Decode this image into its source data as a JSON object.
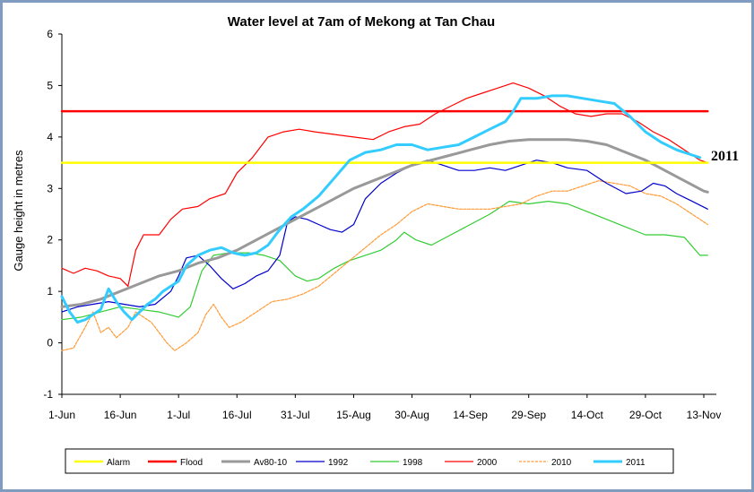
{
  "chart_data": {
    "type": "line",
    "title": "Water level at 7am of Mekong at Tan Chau",
    "xlabel": "",
    "ylabel": "Gauge height in metres",
    "ylim": [
      -1,
      6
    ],
    "yticks": [
      "-1",
      "0",
      "1",
      "2",
      "3",
      "4",
      "5",
      "6"
    ],
    "xlim": [
      0,
      165
    ],
    "xticks": [
      {
        "x": 0,
        "label": "1-Jun"
      },
      {
        "x": 15,
        "label": "16-Jun"
      },
      {
        "x": 30,
        "label": "1-Jul"
      },
      {
        "x": 45,
        "label": "16-Jul"
      },
      {
        "x": 60,
        "label": "31-Jul"
      },
      {
        "x": 75,
        "label": "15-Aug"
      },
      {
        "x": 90,
        "label": "30-Aug"
      },
      {
        "x": 105,
        "label": "14-Sep"
      },
      {
        "x": 120,
        "label": "29-Sep"
      },
      {
        "x": 135,
        "label": "14-Oct"
      },
      {
        "x": 150,
        "label": "29-Oct"
      },
      {
        "x": 165,
        "label": "13-Nov"
      }
    ],
    "grid": false,
    "legend_position": "bottom",
    "annotation": "2011",
    "series": [
      {
        "name": "Alarm",
        "color": "#ffff00",
        "points": [
          [
            0,
            3.5
          ],
          [
            166,
            3.5
          ]
        ]
      },
      {
        "name": "Flood",
        "color": "#ff0000",
        "points": [
          [
            0,
            4.5
          ],
          [
            166,
            4.5
          ]
        ]
      },
      {
        "name": "Av80-10",
        "color": "#999999",
        "points": [
          [
            0,
            0.7
          ],
          [
            5,
            0.75
          ],
          [
            10,
            0.85
          ],
          [
            15,
            1.0
          ],
          [
            20,
            1.15
          ],
          [
            25,
            1.3
          ],
          [
            30,
            1.4
          ],
          [
            35,
            1.55
          ],
          [
            40,
            1.65
          ],
          [
            45,
            1.8
          ],
          [
            50,
            2.0
          ],
          [
            55,
            2.2
          ],
          [
            60,
            2.4
          ],
          [
            65,
            2.6
          ],
          [
            70,
            2.8
          ],
          [
            75,
            3.0
          ],
          [
            80,
            3.15
          ],
          [
            85,
            3.3
          ],
          [
            90,
            3.45
          ],
          [
            95,
            3.55
          ],
          [
            100,
            3.65
          ],
          [
            105,
            3.75
          ],
          [
            110,
            3.85
          ],
          [
            115,
            3.92
          ],
          [
            120,
            3.95
          ],
          [
            125,
            3.95
          ],
          [
            130,
            3.95
          ],
          [
            135,
            3.92
          ],
          [
            140,
            3.85
          ],
          [
            145,
            3.7
          ],
          [
            150,
            3.55
          ],
          [
            155,
            3.35
          ],
          [
            160,
            3.15
          ],
          [
            165,
            2.95
          ],
          [
            166,
            2.93
          ]
        ]
      },
      {
        "name": "1992",
        "color": "#0000cc",
        "points": [
          [
            0,
            0.6
          ],
          [
            4,
            0.7
          ],
          [
            8,
            0.75
          ],
          [
            12,
            0.8
          ],
          [
            16,
            0.75
          ],
          [
            20,
            0.7
          ],
          [
            24,
            0.75
          ],
          [
            28,
            1.0
          ],
          [
            30,
            1.3
          ],
          [
            32,
            1.65
          ],
          [
            35,
            1.7
          ],
          [
            38,
            1.5
          ],
          [
            41,
            1.25
          ],
          [
            44,
            1.05
          ],
          [
            47,
            1.15
          ],
          [
            50,
            1.3
          ],
          [
            53,
            1.4
          ],
          [
            56,
            1.7
          ],
          [
            58,
            2.35
          ],
          [
            60,
            2.45
          ],
          [
            63,
            2.4
          ],
          [
            66,
            2.3
          ],
          [
            69,
            2.2
          ],
          [
            72,
            2.15
          ],
          [
            75,
            2.3
          ],
          [
            78,
            2.8
          ],
          [
            82,
            3.1
          ],
          [
            86,
            3.3
          ],
          [
            90,
            3.45
          ],
          [
            94,
            3.55
          ],
          [
            98,
            3.45
          ],
          [
            102,
            3.35
          ],
          [
            106,
            3.35
          ],
          [
            110,
            3.4
          ],
          [
            114,
            3.35
          ],
          [
            118,
            3.45
          ],
          [
            122,
            3.55
          ],
          [
            126,
            3.5
          ],
          [
            130,
            3.4
          ],
          [
            135,
            3.35
          ],
          [
            140,
            3.1
          ],
          [
            145,
            2.9
          ],
          [
            149,
            2.95
          ],
          [
            152,
            3.1
          ],
          [
            155,
            3.05
          ],
          [
            158,
            2.9
          ],
          [
            162,
            2.75
          ],
          [
            166,
            2.6
          ]
        ]
      },
      {
        "name": "1998",
        "color": "#33cc33",
        "points": [
          [
            0,
            0.45
          ],
          [
            5,
            0.5
          ],
          [
            10,
            0.6
          ],
          [
            15,
            0.7
          ],
          [
            20,
            0.65
          ],
          [
            25,
            0.6
          ],
          [
            30,
            0.5
          ],
          [
            33,
            0.7
          ],
          [
            36,
            1.4
          ],
          [
            39,
            1.7
          ],
          [
            43,
            1.75
          ],
          [
            48,
            1.75
          ],
          [
            52,
            1.7
          ],
          [
            56,
            1.6
          ],
          [
            60,
            1.3
          ],
          [
            63,
            1.2
          ],
          [
            66,
            1.25
          ],
          [
            70,
            1.45
          ],
          [
            74,
            1.6
          ],
          [
            78,
            1.7
          ],
          [
            82,
            1.8
          ],
          [
            86,
            2.0
          ],
          [
            88,
            2.15
          ],
          [
            91,
            2.0
          ],
          [
            95,
            1.9
          ],
          [
            100,
            2.1
          ],
          [
            105,
            2.3
          ],
          [
            110,
            2.5
          ],
          [
            115,
            2.75
          ],
          [
            120,
            2.7
          ],
          [
            125,
            2.75
          ],
          [
            130,
            2.7
          ],
          [
            135,
            2.55
          ],
          [
            140,
            2.4
          ],
          [
            145,
            2.25
          ],
          [
            150,
            2.1
          ],
          [
            155,
            2.1
          ],
          [
            160,
            2.05
          ],
          [
            164,
            1.7
          ],
          [
            166,
            1.7
          ]
        ]
      },
      {
        "name": "2000",
        "color": "#ff0000",
        "points": [
          [
            0,
            1.45
          ],
          [
            3,
            1.35
          ],
          [
            6,
            1.45
          ],
          [
            9,
            1.4
          ],
          [
            12,
            1.3
          ],
          [
            15,
            1.25
          ],
          [
            17,
            1.1
          ],
          [
            19,
            1.8
          ],
          [
            21,
            2.1
          ],
          [
            25,
            2.1
          ],
          [
            28,
            2.4
          ],
          [
            31,
            2.6
          ],
          [
            35,
            2.65
          ],
          [
            38,
            2.8
          ],
          [
            42,
            2.9
          ],
          [
            45,
            3.3
          ],
          [
            49,
            3.6
          ],
          [
            53,
            4.0
          ],
          [
            57,
            4.1
          ],
          [
            61,
            4.15
          ],
          [
            65,
            4.1
          ],
          [
            70,
            4.05
          ],
          [
            75,
            4.0
          ],
          [
            80,
            3.95
          ],
          [
            84,
            4.1
          ],
          [
            88,
            4.2
          ],
          [
            92,
            4.25
          ],
          [
            96,
            4.45
          ],
          [
            100,
            4.6
          ],
          [
            104,
            4.75
          ],
          [
            108,
            4.85
          ],
          [
            112,
            4.95
          ],
          [
            116,
            5.05
          ],
          [
            120,
            4.95
          ],
          [
            124,
            4.8
          ],
          [
            128,
            4.6
          ],
          [
            132,
            4.45
          ],
          [
            136,
            4.4
          ],
          [
            140,
            4.45
          ],
          [
            144,
            4.45
          ],
          [
            148,
            4.3
          ],
          [
            152,
            4.1
          ],
          [
            156,
            3.95
          ],
          [
            160,
            3.75
          ],
          [
            164,
            3.55
          ],
          [
            166,
            3.5
          ]
        ]
      },
      {
        "name": "2010",
        "color": "#ff9933",
        "points": [
          [
            0,
            -0.15
          ],
          [
            3,
            -0.1
          ],
          [
            6,
            0.3
          ],
          [
            8,
            0.6
          ],
          [
            10,
            0.2
          ],
          [
            12,
            0.3
          ],
          [
            14,
            0.1
          ],
          [
            17,
            0.3
          ],
          [
            19,
            0.6
          ],
          [
            21,
            0.5
          ],
          [
            23,
            0.4
          ],
          [
            25,
            0.2
          ],
          [
            27,
            0.0
          ],
          [
            29,
            -0.15
          ],
          [
            32,
            0.0
          ],
          [
            35,
            0.2
          ],
          [
            37,
            0.55
          ],
          [
            39,
            0.75
          ],
          [
            41,
            0.5
          ],
          [
            43,
            0.3
          ],
          [
            46,
            0.4
          ],
          [
            50,
            0.6
          ],
          [
            54,
            0.8
          ],
          [
            58,
            0.85
          ],
          [
            62,
            0.95
          ],
          [
            66,
            1.1
          ],
          [
            70,
            1.35
          ],
          [
            74,
            1.6
          ],
          [
            78,
            1.85
          ],
          [
            82,
            2.1
          ],
          [
            86,
            2.3
          ],
          [
            90,
            2.55
          ],
          [
            94,
            2.7
          ],
          [
            98,
            2.65
          ],
          [
            102,
            2.6
          ],
          [
            106,
            2.6
          ],
          [
            110,
            2.6
          ],
          [
            114,
            2.65
          ],
          [
            118,
            2.7
          ],
          [
            122,
            2.85
          ],
          [
            126,
            2.95
          ],
          [
            130,
            2.95
          ],
          [
            134,
            3.05
          ],
          [
            138,
            3.15
          ],
          [
            142,
            3.1
          ],
          [
            146,
            3.05
          ],
          [
            150,
            2.9
          ],
          [
            154,
            2.85
          ],
          [
            158,
            2.7
          ],
          [
            162,
            2.5
          ],
          [
            166,
            2.3
          ]
        ]
      },
      {
        "name": "2011",
        "color": "#33ccff",
        "points": [
          [
            0,
            0.9
          ],
          [
            2,
            0.6
          ],
          [
            4,
            0.4
          ],
          [
            6,
            0.45
          ],
          [
            8,
            0.55
          ],
          [
            10,
            0.65
          ],
          [
            12,
            1.05
          ],
          [
            14,
            0.8
          ],
          [
            16,
            0.6
          ],
          [
            18,
            0.45
          ],
          [
            20,
            0.6
          ],
          [
            22,
            0.75
          ],
          [
            24,
            0.85
          ],
          [
            26,
            1.0
          ],
          [
            28,
            1.1
          ],
          [
            30,
            1.2
          ],
          [
            32,
            1.5
          ],
          [
            35,
            1.7
          ],
          [
            38,
            1.8
          ],
          [
            41,
            1.85
          ],
          [
            44,
            1.75
          ],
          [
            47,
            1.7
          ],
          [
            50,
            1.75
          ],
          [
            53,
            1.9
          ],
          [
            56,
            2.2
          ],
          [
            59,
            2.45
          ],
          [
            62,
            2.6
          ],
          [
            66,
            2.85
          ],
          [
            70,
            3.2
          ],
          [
            74,
            3.55
          ],
          [
            78,
            3.7
          ],
          [
            82,
            3.75
          ],
          [
            86,
            3.85
          ],
          [
            90,
            3.85
          ],
          [
            94,
            3.75
          ],
          [
            98,
            3.8
          ],
          [
            102,
            3.85
          ],
          [
            106,
            4.0
          ],
          [
            110,
            4.15
          ],
          [
            114,
            4.3
          ],
          [
            116,
            4.5
          ],
          [
            118,
            4.75
          ],
          [
            122,
            4.75
          ],
          [
            126,
            4.8
          ],
          [
            130,
            4.8
          ],
          [
            134,
            4.75
          ],
          [
            138,
            4.7
          ],
          [
            142,
            4.65
          ],
          [
            146,
            4.4
          ],
          [
            150,
            4.1
          ],
          [
            154,
            3.9
          ],
          [
            158,
            3.75
          ],
          [
            162,
            3.65
          ],
          [
            164,
            3.6
          ]
        ]
      }
    ]
  }
}
